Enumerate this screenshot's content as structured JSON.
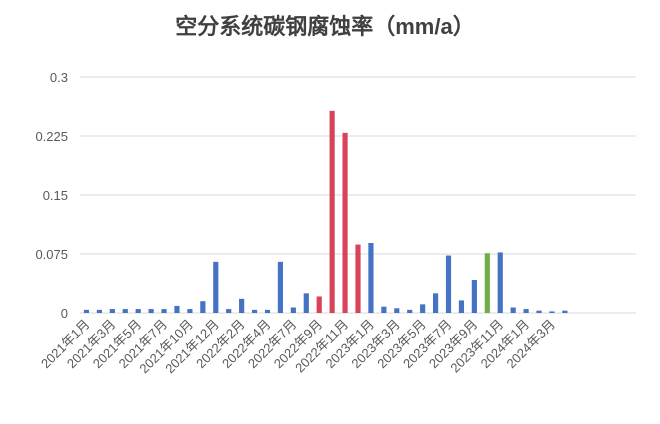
{
  "chart_data": {
    "type": "bar",
    "title": "空分系统碳钢腐蚀率（mm/a）",
    "categories": [
      "2021年1月",
      null,
      "2021年3月",
      null,
      "2021年5月",
      null,
      "2021年7月",
      null,
      "2021年10月",
      null,
      "2021年12月",
      null,
      "2022年2月",
      null,
      "2022年4月",
      null,
      "2022年7月",
      null,
      "2022年9月",
      null,
      "2022年11月",
      null,
      "2023年1月",
      null,
      "2023年3月",
      null,
      "2023年5月",
      null,
      "2023年7月",
      null,
      "2023年9月",
      null,
      "2023年11月",
      null,
      "2024年1月",
      null,
      "2024年3月",
      null,
      null,
      null,
      null,
      null,
      null
    ],
    "values": [
      0.004,
      0.004,
      0.005,
      0.005,
      0.005,
      0.005,
      0.005,
      0.009,
      0.005,
      0.015,
      0.065,
      0.005,
      0.018,
      0.004,
      0.004,
      0.065,
      0.007,
      0.025,
      0.021,
      0.257,
      0.229,
      0.087,
      0.089,
      0.008,
      0.006,
      0.004,
      0.011,
      0.025,
      0.073,
      0.016,
      0.042,
      0.076,
      0.077,
      0.007,
      0.005,
      0.003,
      0.002,
      0.003,
      null,
      null,
      null,
      null,
      null
    ],
    "colors": [
      "#4472c4",
      "#4472c4",
      "#4472c4",
      "#4472c4",
      "#4472c4",
      "#4472c4",
      "#4472c4",
      "#4472c4",
      "#4472c4",
      "#4472c4",
      "#4472c4",
      "#4472c4",
      "#4472c4",
      "#4472c4",
      "#4472c4",
      "#4472c4",
      "#4472c4",
      "#4472c4",
      "#d9435a",
      "#d9435a",
      "#d9435a",
      "#d9435a",
      "#4472c4",
      "#4472c4",
      "#4472c4",
      "#4472c4",
      "#4472c4",
      "#4472c4",
      "#4472c4",
      "#4472c4",
      "#4472c4",
      "#70ad47",
      "#4472c4",
      "#4472c4",
      "#4472c4",
      "#4472c4",
      "#4472c4",
      "#4472c4",
      null,
      null,
      null,
      null,
      null
    ],
    "ylim": [
      0,
      0.3
    ],
    "yticks": [
      0,
      0.075,
      0.15,
      0.225,
      0.3
    ],
    "grid": true
  }
}
